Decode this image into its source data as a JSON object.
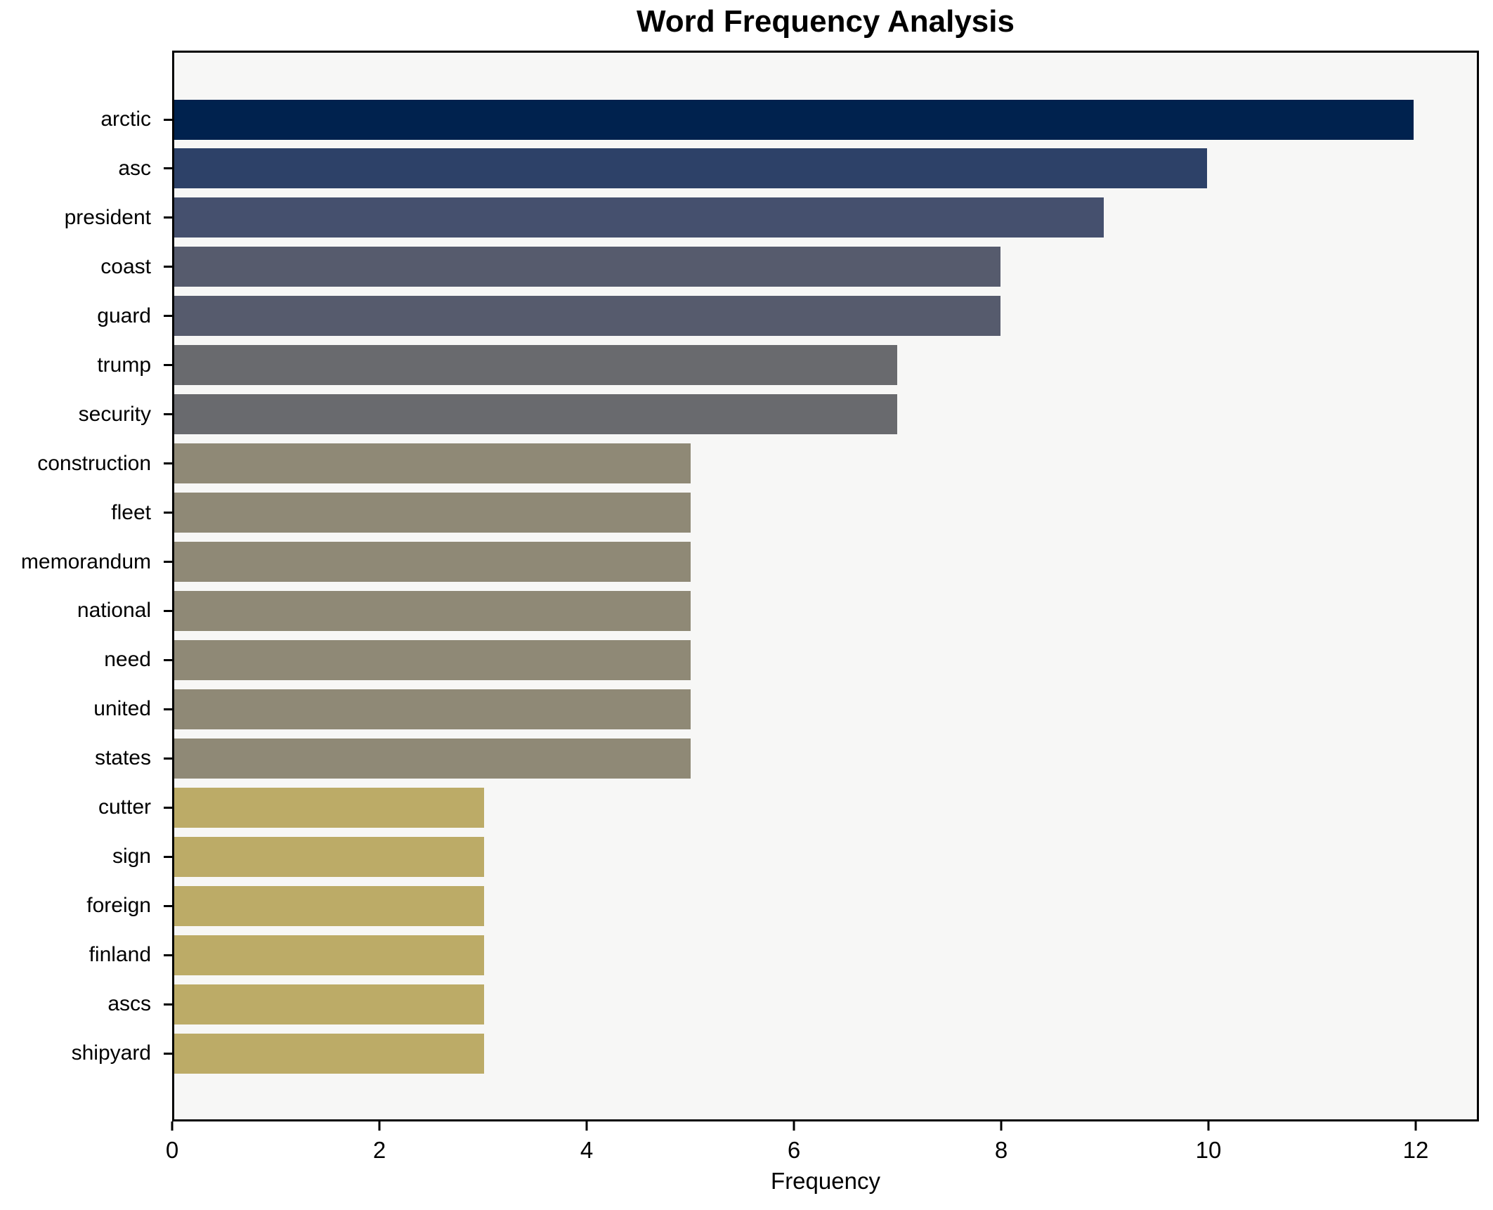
{
  "chart_data": {
    "type": "bar",
    "orientation": "horizontal",
    "title": "Word Frequency Analysis",
    "xlabel": "Frequency",
    "ylabel": "",
    "categories": [
      "arctic",
      "asc",
      "president",
      "coast",
      "guard",
      "trump",
      "security",
      "construction",
      "fleet",
      "memorandum",
      "national",
      "need",
      "united",
      "states",
      "cutter",
      "sign",
      "foreign",
      "finland",
      "ascs",
      "shipyard"
    ],
    "values": [
      12,
      10,
      9,
      8,
      8,
      7,
      7,
      5,
      5,
      5,
      5,
      5,
      5,
      5,
      3,
      3,
      3,
      3,
      3,
      3
    ],
    "bar_colors": [
      "#00224e",
      "#2d4168",
      "#45506e",
      "#565b6d",
      "#565b6d",
      "#696a6e",
      "#696a6e",
      "#8f8976",
      "#8f8976",
      "#8f8976",
      "#8f8976",
      "#8f8976",
      "#8f8976",
      "#8f8976",
      "#bcab67",
      "#bcab67",
      "#bcab67",
      "#bcab67",
      "#bcab67",
      "#bcab67"
    ],
    "xticks": [
      0,
      2,
      4,
      6,
      8,
      10,
      12
    ],
    "xlim": [
      0,
      12.61
    ],
    "grid": false,
    "legend_position": "none",
    "plot_background": "#f7f7f6",
    "figure_background": "#ffffff",
    "spine_color": "#000000",
    "text_color": "#000000"
  }
}
